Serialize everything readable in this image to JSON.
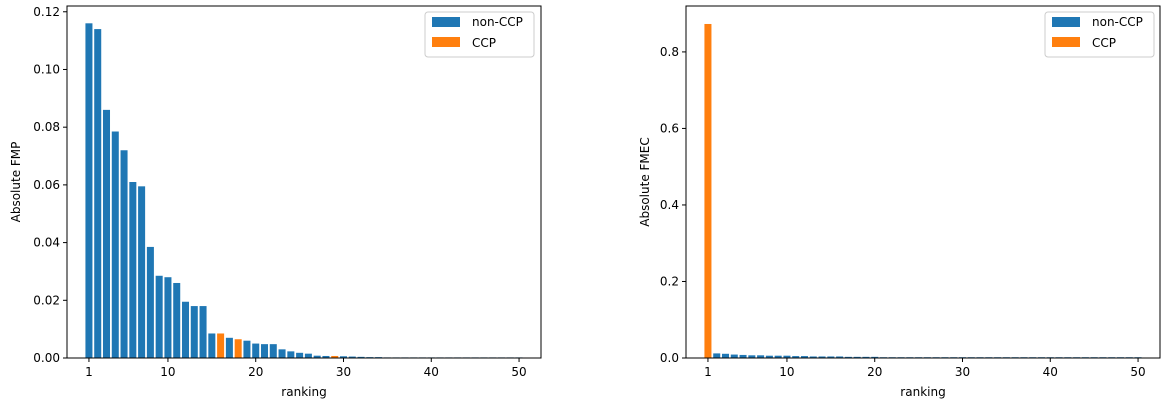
{
  "colors": {
    "non_ccp": "#1f77b4",
    "ccp": "#ff7f0e"
  },
  "chart_data": [
    {
      "type": "bar",
      "xlabel": "ranking",
      "ylabel": "Absolute FMP",
      "xlim": [
        -1.5,
        52.5
      ],
      "ylim": [
        0,
        0.122
      ],
      "xticks": [
        1,
        10,
        20,
        30,
        40,
        50
      ],
      "yticks": [
        0.0,
        0.02,
        0.04,
        0.06,
        0.08,
        0.1,
        0.12
      ],
      "ytick_labels": [
        "0.00",
        "0.02",
        "0.04",
        "0.06",
        "0.08",
        "0.10",
        "0.12"
      ],
      "grid": false,
      "legend": {
        "placement": "top-right",
        "entries": [
          "non-CCP",
          "CCP"
        ]
      },
      "x": [
        1,
        2,
        3,
        4,
        5,
        6,
        7,
        8,
        9,
        10,
        11,
        12,
        13,
        14,
        15,
        16,
        17,
        18,
        19,
        20,
        21,
        22,
        23,
        24,
        25,
        26,
        27,
        28,
        29,
        30,
        31,
        32,
        33,
        34,
        35,
        36,
        37,
        38,
        39,
        40,
        41,
        42,
        43,
        44,
        45,
        46,
        47,
        48,
        49,
        50
      ],
      "values": [
        0.116,
        0.114,
        0.086,
        0.0785,
        0.072,
        0.061,
        0.0595,
        0.0385,
        0.0285,
        0.028,
        0.026,
        0.0195,
        0.018,
        0.018,
        0.0085,
        0.0085,
        0.007,
        0.0065,
        0.006,
        0.005,
        0.0048,
        0.0048,
        0.003,
        0.0023,
        0.0018,
        0.0015,
        0.0008,
        0.0007,
        0.0007,
        0.0006,
        0.0005,
        0.0004,
        0.0003,
        0.0003,
        0.0002,
        0.0002,
        0.0002,
        0.0002,
        0.0001,
        0.0001,
        0.0001,
        0.0001,
        0.0001,
        0.0001,
        0.0001,
        0.0001,
        0.0001,
        0.0001,
        0.0001,
        0.0001
      ],
      "is_ccp": [
        false,
        false,
        false,
        false,
        false,
        false,
        false,
        false,
        false,
        false,
        false,
        false,
        false,
        false,
        false,
        true,
        false,
        true,
        false,
        false,
        false,
        false,
        false,
        false,
        false,
        false,
        false,
        false,
        true,
        false,
        false,
        false,
        false,
        false,
        false,
        false,
        false,
        false,
        false,
        false,
        false,
        false,
        false,
        false,
        false,
        false,
        false,
        false,
        false,
        false
      ]
    },
    {
      "type": "bar",
      "xlabel": "ranking",
      "ylabel": "Absolute FMEC",
      "xlim": [
        -1.5,
        52.5
      ],
      "ylim": [
        0,
        0.92
      ],
      "xticks": [
        1,
        10,
        20,
        30,
        40,
        50
      ],
      "yticks": [
        0.0,
        0.2,
        0.4,
        0.6,
        0.8
      ],
      "ytick_labels": [
        "0.0",
        "0.2",
        "0.4",
        "0.6",
        "0.8"
      ],
      "grid": false,
      "legend": {
        "placement": "top-right",
        "entries": [
          "non-CCP",
          "CCP"
        ]
      },
      "x": [
        1,
        2,
        3,
        4,
        5,
        6,
        7,
        8,
        9,
        10,
        11,
        12,
        13,
        14,
        15,
        16,
        17,
        18,
        19,
        20,
        21,
        22,
        23,
        24,
        25,
        26,
        27,
        28,
        29,
        30,
        31,
        32,
        33,
        34,
        35,
        36,
        37,
        38,
        39,
        40,
        41,
        42,
        43,
        44,
        45,
        46,
        47,
        48,
        49,
        50
      ],
      "values": [
        0.873,
        0.012,
        0.011,
        0.009,
        0.008,
        0.007,
        0.007,
        0.006,
        0.006,
        0.006,
        0.005,
        0.005,
        0.004,
        0.004,
        0.004,
        0.004,
        0.003,
        0.003,
        0.003,
        0.003,
        0.002,
        0.002,
        0.002,
        0.002,
        0.002,
        0.002,
        0.002,
        0.002,
        0.002,
        0.002,
        0.002,
        0.002,
        0.002,
        0.002,
        0.002,
        0.002,
        0.002,
        0.002,
        0.002,
        0.002,
        0.002,
        0.002,
        0.002,
        0.002,
        0.002,
        0.002,
        0.002,
        0.002,
        0.002,
        0.002
      ],
      "is_ccp": [
        true,
        false,
        false,
        false,
        false,
        false,
        false,
        false,
        false,
        false,
        false,
        false,
        false,
        false,
        false,
        false,
        false,
        false,
        false,
        false,
        false,
        false,
        false,
        false,
        false,
        false,
        false,
        false,
        false,
        false,
        false,
        false,
        false,
        false,
        false,
        false,
        false,
        false,
        false,
        false,
        false,
        false,
        false,
        false,
        false,
        false,
        false,
        false,
        false,
        false
      ]
    }
  ]
}
